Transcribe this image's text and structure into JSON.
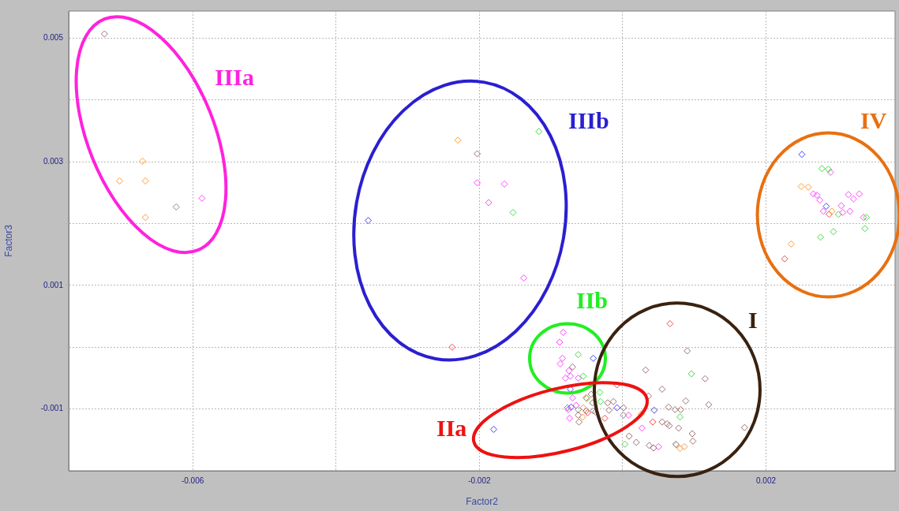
{
  "chart_data": {
    "type": "scatter",
    "xlabel": "Factor2",
    "ylabel": "Factor3",
    "xlim": [
      -0.00773,
      0.0038
    ],
    "ylim": [
      -0.002,
      0.00544
    ],
    "xticks": [
      -0.006,
      {
        "value": -0.004,
        "label": null
      },
      -0.002,
      {
        "value": 0,
        "label": null
      },
      0.002
    ],
    "yticks": [
      {
        "value": -0.001,
        "label": "-0.001"
      },
      {
        "value": 0,
        "label": null
      },
      0.001,
      {
        "value": 0.002,
        "label": null
      },
      0.003,
      {
        "value": 0.004,
        "label": null
      },
      0.005
    ],
    "grid": true,
    "legend": false,
    "marker": "diamond",
    "annotations": [
      "IIIa",
      "IIIb",
      "IV",
      "IIb",
      "I",
      "IIa"
    ],
    "series": [
      {
        "color": "#a07070",
        "x": [
          -0.00723,
          -0.00203,
          -0.0007,
          0.00032,
          -8e-05,
          -0.00044,
          -0.00021,
          -0.00062,
          -0.00051,
          -0.00042,
          -0.00038,
          -0.00061,
          1e-05,
          -0.00019,
          -0.00013,
          9e-05,
          0.00019,
          0.00037,
          0.00043,
          0.0009,
          0.00115,
          0.00055,
          0.00036,
          0.00088,
          0.0012,
          0.00064,
          0.00073,
          0.00081,
          0.00055,
          0.00062,
          0.00065,
          0.00078,
          0.0017,
          0.00097,
          0.00098
        ],
        "values": [
          0.00507,
          0.00313,
          -0.00032,
          -0.00037,
          -0.00061,
          -0.00076,
          -0.0009,
          -0.0011,
          -0.00103,
          -0.0009,
          -0.00105,
          -0.00121,
          -0.00098,
          -0.00102,
          -0.00088,
          -0.00144,
          -0.00154,
          -0.00159,
          -0.00163,
          -6e-05,
          -0.00051,
          -0.00068,
          -0.00079,
          -0.00087,
          -0.00093,
          -0.00097,
          -0.00101,
          -0.00101,
          -0.00121,
          -0.00124,
          -0.00127,
          -0.00131,
          -0.0013,
          -0.0014,
          -0.00152
        ]
      },
      {
        "color": "#888888",
        "x": [
          -0.00623,
          -0.00077,
          -0.00062,
          -0.00041,
          1e-05,
          0.00074
        ],
        "values": [
          0.00227,
          -0.00098,
          -0.00101,
          -0.00103,
          -0.0011,
          -0.00157
        ]
      },
      {
        "color": "#ff9933",
        "x": [
          -0.0067,
          -0.00702,
          -0.00666,
          -0.00666,
          -0.0023,
          0.00249,
          0.00259,
          0.00292,
          0.00235,
          -0.00055,
          -0.00056,
          0.00026,
          0.00075,
          0.0008,
          0.00086
        ],
        "values": [
          0.00301,
          0.00269,
          0.00269,
          0.0021,
          0.00335,
          0.0026,
          0.00259,
          0.0022,
          0.00167,
          -0.00098,
          -0.00113,
          -0.00108,
          -0.00158,
          -0.00164,
          -0.00161
        ]
      },
      {
        "color": "#ff44ff",
        "x": [
          -0.00587,
          -0.00203,
          -0.00165,
          -0.00187,
          -0.00138,
          0.0029,
          0.00266,
          0.00271,
          0.00275,
          0.00315,
          0.0033,
          0.00322,
          0.0028,
          0.00305,
          0.00307,
          0.00317,
          0.00336,
          -0.00083,
          -0.00088,
          -0.00084,
          -0.00087,
          -0.00075,
          -0.0008,
          -0.00073,
          -0.00062,
          -0.0007,
          -0.00076,
          -0.00065,
          -0.00074,
          8e-05,
          0.00027,
          0.0005
        ],
        "values": [
          0.00241,
          0.00266,
          0.00264,
          0.00234,
          0.00112,
          0.00283,
          0.00248,
          0.00246,
          0.00238,
          0.00247,
          0.00248,
          0.0024,
          0.0022,
          0.00229,
          0.00218,
          0.0022,
          0.0021,
          0.00024,
          8e-05,
          -0.00018,
          -0.00027,
          -0.00038,
          -0.0005,
          -0.00047,
          -0.0005,
          -0.00082,
          -0.00101,
          -0.00094,
          -0.00115,
          -0.0011,
          -0.00131,
          -0.00161
        ]
      },
      {
        "color": "#44dd44",
        "x": [
          -0.00117,
          -0.00153,
          0.00278,
          0.00287,
          0.00301,
          0.0034,
          0.00338,
          0.00294,
          0.00276,
          -0.00062,
          -0.00055,
          -0.00032,
          -0.00031,
          -0.0005,
          3e-05,
          0.00096,
          0.0008
        ],
        "values": [
          0.00349,
          0.00218,
          0.00289,
          0.00288,
          0.00215,
          0.0021,
          0.00192,
          0.00187,
          0.00178,
          -0.00012,
          -0.00047,
          -0.00073,
          -0.00088,
          -0.00083,
          -0.00157,
          -0.00043,
          -0.00113
        ]
      },
      {
        "color": "#4444ff",
        "x": [
          -0.00355,
          0.0025,
          0.00284,
          -0.00041,
          -0.00073,
          -0.00072,
          -8e-05,
          0.00044,
          -0.0018
        ],
        "values": [
          0.00205,
          0.00312,
          0.00228,
          -0.00018,
          -0.00068,
          -0.00097,
          -0.00098,
          -0.00102,
          -0.00133
        ]
      },
      {
        "color": "#ff4444",
        "x": [
          -0.00238,
          0.00288,
          0.00226,
          -0.00051,
          -0.00049,
          -0.00025,
          0.00042,
          0.00066
        ],
        "values": [
          0,
          0.00215,
          0.00143,
          -0.00082,
          -0.00106,
          -0.00115,
          -0.00121,
          0.00038
        ]
      }
    ]
  }
}
